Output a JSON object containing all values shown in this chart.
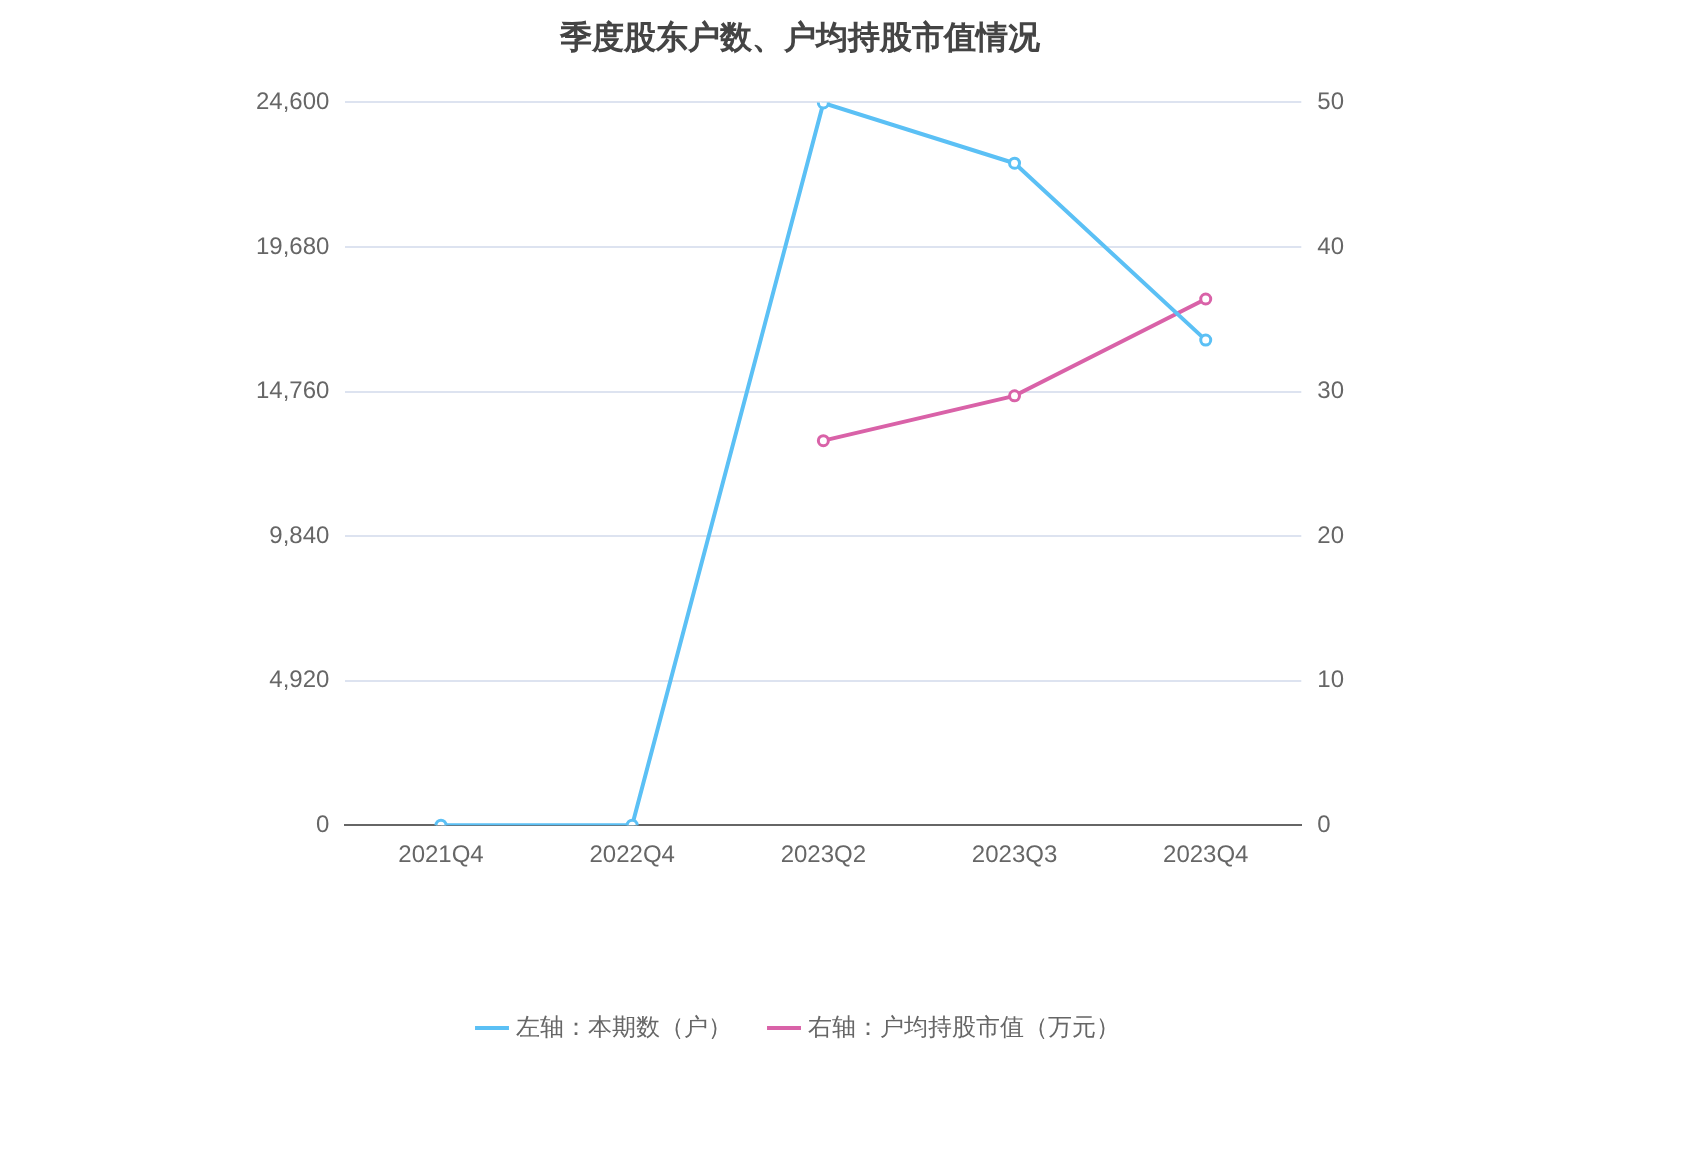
{
  "chart_data": {
    "type": "line",
    "title": "季度股东户数、户均持股市值情况",
    "categories": [
      "2021Q4",
      "2022Q4",
      "2023Q2",
      "2023Q3",
      "2023Q4"
    ],
    "series": [
      {
        "name": "左轴：本期数（户）",
        "color": "#5bc0f5",
        "values": [
          0,
          0,
          24580,
          22530,
          16510
        ]
      },
      {
        "name": "右轴：户均持股市值（万元）",
        "color": "#d962a8",
        "axis": "y2",
        "values": [
          null,
          null,
          26.6,
          29.7,
          36.4
        ]
      }
    ],
    "ylim": [
      0,
      24600
    ],
    "yticks": [
      0,
      {
        "value": 4920,
        "label": "4,920"
      },
      {
        "value": 9840,
        "label": "9,840"
      },
      {
        "value": 14760,
        "label": "14,760"
      },
      {
        "value": 19680,
        "label": "19,680"
      },
      {
        "value": 24600,
        "label": "24,600"
      }
    ],
    "y2lim": [
      0,
      50
    ],
    "y2ticks": [
      0,
      10,
      20,
      30,
      40,
      50
    ],
    "grid": "y",
    "legend": "bottom",
    "marker": "circle",
    "line_style": "solid"
  }
}
